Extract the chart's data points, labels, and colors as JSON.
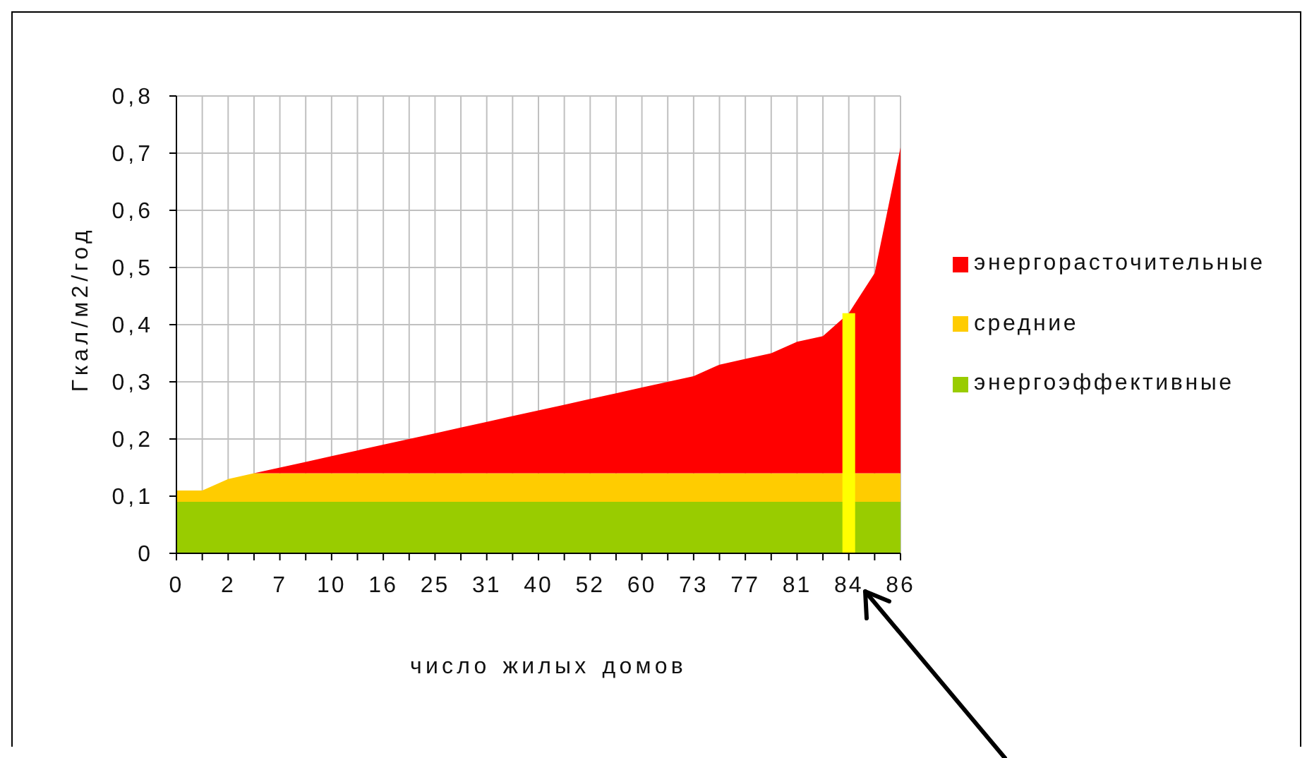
{
  "chart_data": {
    "type": "area",
    "xlabel": "число жилых домов",
    "ylabel": "Гкал/м2/год",
    "categories": [
      "0",
      null,
      "2",
      null,
      "7",
      null,
      "10",
      null,
      "16",
      null,
      "25",
      null,
      "31",
      null,
      "40",
      null,
      "52",
      null,
      "60",
      null,
      "73",
      null,
      "77",
      null,
      "81",
      null,
      "84",
      null,
      "86"
    ],
    "stacked": true,
    "series": [
      {
        "name": "энергоэффективные",
        "color": "#99cc00",
        "values": [
          0.09,
          0.09,
          0.09,
          0.09,
          0.09,
          0.09,
          0.09,
          0.09,
          0.09,
          0.09,
          0.09,
          0.09,
          0.09,
          0.09,
          0.09,
          0.09,
          0.09,
          0.09,
          0.09,
          0.09,
          0.09,
          0.09,
          0.09,
          0.09,
          0.09,
          0.09,
          0.09,
          0.09,
          0.09
        ]
      },
      {
        "name": "средние",
        "color": "#ffcc00",
        "values": [
          0.02,
          0.02,
          0.04,
          0.05,
          0.05,
          0.05,
          0.05,
          0.05,
          0.05,
          0.05,
          0.05,
          0.05,
          0.05,
          0.05,
          0.05,
          0.05,
          0.05,
          0.05,
          0.05,
          0.05,
          0.05,
          0.05,
          0.05,
          0.05,
          0.05,
          0.05,
          0.05,
          0.05,
          0.05
        ]
      },
      {
        "name": "энергорасточительные",
        "color": "#ff0000",
        "values": [
          0,
          0,
          0,
          0,
          0.01,
          0.02,
          0.03,
          0.04,
          0.05,
          0.06,
          0.07,
          0.08,
          0.09,
          0.1,
          0.11,
          0.12,
          0.13,
          0.14,
          0.15,
          0.16,
          0.17,
          0.19,
          0.2,
          0.21,
          0.23,
          0.24,
          0.28,
          0.35,
          0.57
        ]
      }
    ],
    "ylim": [
      0,
      0.8
    ],
    "yticks": [
      0,
      {
        "value": 0.1,
        "label": "0,1"
      },
      {
        "value": 0.2,
        "label": "0,2"
      },
      {
        "value": 0.3,
        "label": "0,3"
      },
      {
        "value": 0.4,
        "label": "0,4"
      },
      {
        "value": 0.5,
        "label": "0,5"
      },
      {
        "value": 0.6,
        "label": "0,6"
      },
      {
        "value": 0.7,
        "label": "0,7"
      },
      {
        "value": 0.8,
        "label": "0,8"
      }
    ],
    "grid": true,
    "legend": "right",
    "ref_lines": [
      {
        "axis": "x",
        "value": "84",
        "color": "#ffff00"
      }
    ]
  }
}
